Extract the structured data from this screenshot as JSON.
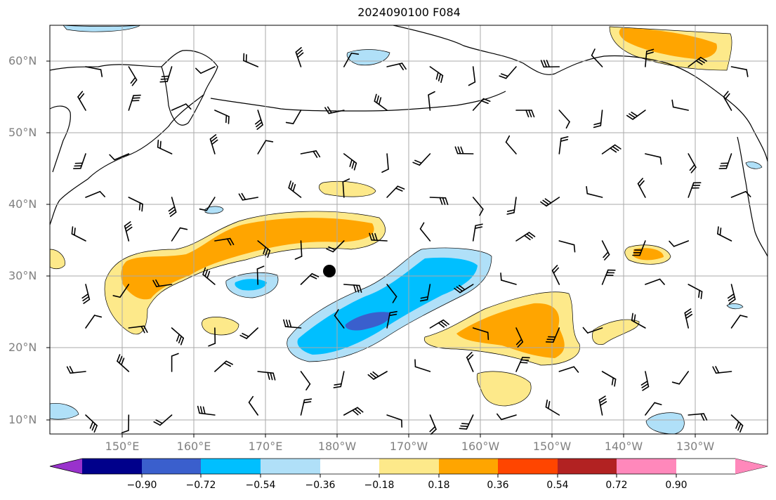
{
  "title": "2024090100 F084",
  "lat_labels": [
    "60°N",
    "50°N",
    "40°N",
    "30°N",
    "20°N",
    "10°N"
  ],
  "lon_labels": [
    "150°E",
    "160°E",
    "170°E",
    "180°W",
    "170°W",
    "160°W",
    "150°W",
    "140°W",
    "130°W"
  ],
  "colorbar": {
    "ticks": [
      "−0.90",
      "−0.72",
      "−0.54",
      "−0.36",
      "−0.18",
      "0.18",
      "0.36",
      "0.54",
      "0.72",
      "0.90"
    ],
    "colors": [
      "#9932cc",
      "#00008b",
      "#3a5fcd",
      "#00bfff",
      "#b0e0f8",
      "#ffffff",
      "#fde98a",
      "#ffa500",
      "#ff4500",
      "#b22222",
      "#ff88bb"
    ]
  },
  "fill_colors": {
    "neg_light": "#b0e0f8",
    "neg_mid": "#00bfff",
    "neg_dark": "#3a5fcd",
    "pos_light": "#fde98a",
    "pos_mid": "#ffa500",
    "pos_dark": "#ff4500"
  }
}
